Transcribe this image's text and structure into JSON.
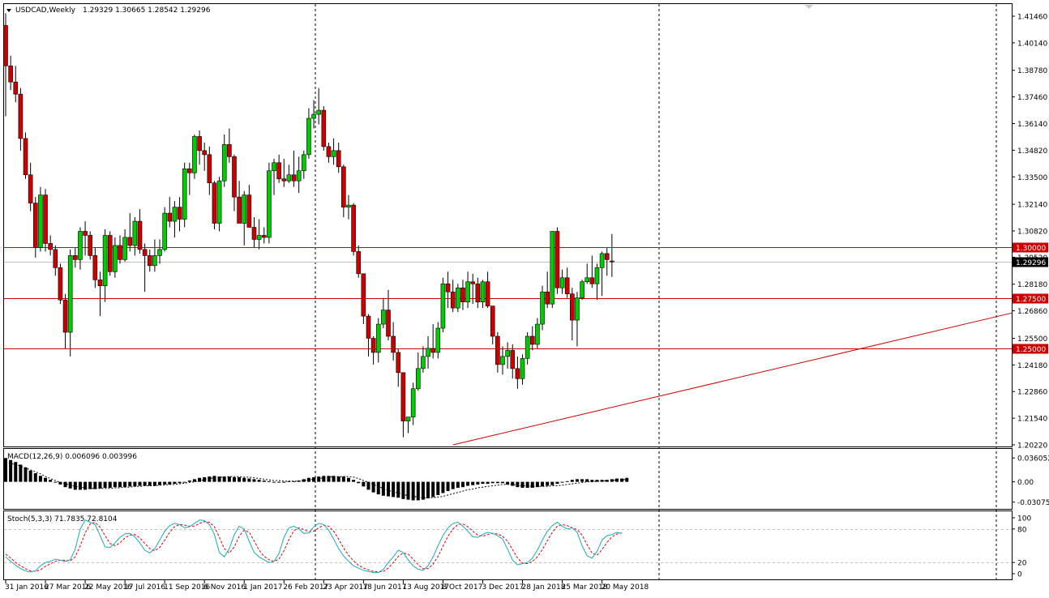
{
  "header": {
    "symbol_tf": "USDCAD,Weekly",
    "ohlc": "1.29329 1.30665 1.28542 1.29296"
  },
  "colors": {
    "bull": "#00cc00",
    "bear": "#cc0000",
    "level_line": "#cc0000",
    "trendline": "#cc0000",
    "stoch_main": "#1ca8c8",
    "stoch_signal": "#e00000",
    "current_price_bg": "#000000"
  },
  "chart_data": [
    {
      "type": "candlestick",
      "name": "USDCAD,Weekly",
      "y_ticks": [
        "1.41460",
        "1.40140",
        "1.38780",
        "1.37460",
        "1.36140",
        "1.34820",
        "1.33500",
        "1.32140",
        "1.30820",
        "1.29520",
        "1.28180",
        "1.26860",
        "1.25500",
        "1.24180",
        "1.22860",
        "1.21540",
        "1.20220"
      ],
      "ylim": [
        1.2022,
        1.4146
      ],
      "x_tick_labels": [
        "31 Jan 2016",
        "27 Mar 2016",
        "22 May 2016",
        "17 Jul 2016",
        "11 Sep 2016",
        "6 Nov 2016",
        "1 Jan 2017",
        "26 Feb 2017",
        "23 Apr 2017",
        "18 Jun 2017",
        "13 Aug 2017",
        "8 Oct 2017",
        "3 Dec 2017",
        "28 Jan 2018",
        "25 Mar 2018",
        "20 May 2018"
      ],
      "horizontal_levels": [
        {
          "value": 1.3,
          "label": "1.30000"
        },
        {
          "value": 1.275,
          "label": "1.27500"
        },
        {
          "value": 1.25,
          "label": "1.25000"
        }
      ],
      "current_price": {
        "value": 1.29296,
        "label": "1.29296"
      },
      "trendline": {
        "from": {
          "bar": 90,
          "value": 1.2022
        },
        "to": {
          "bar": 205,
          "value": 1.269
        }
      },
      "candles": [
        [
          1.41,
          1.416,
          1.365,
          1.39
        ],
        [
          1.39,
          1.395,
          1.378,
          1.382
        ],
        [
          1.382,
          1.39,
          1.372,
          1.376
        ],
        [
          1.376,
          1.379,
          1.348,
          1.354
        ],
        [
          1.354,
          1.357,
          1.334,
          1.336
        ],
        [
          1.336,
          1.342,
          1.318,
          1.322
        ],
        [
          1.322,
          1.325,
          1.295,
          1.3
        ],
        [
          1.3,
          1.33,
          1.298,
          1.326
        ],
        [
          1.326,
          1.329,
          1.298,
          1.302
        ],
        [
          1.302,
          1.306,
          1.296,
          1.299
        ],
        [
          1.299,
          1.301,
          1.286,
          1.29
        ],
        [
          1.29,
          1.292,
          1.272,
          1.274
        ],
        [
          1.274,
          1.277,
          1.25,
          1.258
        ],
        [
          1.258,
          1.299,
          1.246,
          1.296
        ],
        [
          1.296,
          1.3,
          1.29,
          1.294
        ],
        [
          1.294,
          1.31,
          1.289,
          1.308
        ],
        [
          1.308,
          1.313,
          1.296,
          1.306
        ],
        [
          1.306,
          1.308,
          1.294,
          1.296
        ],
        [
          1.296,
          1.3,
          1.28,
          1.284
        ],
        [
          1.284,
          1.288,
          1.266,
          1.281
        ],
        [
          1.281,
          1.309,
          1.273,
          1.306
        ],
        [
          1.306,
          1.308,
          1.286,
          1.288
        ],
        [
          1.288,
          1.305,
          1.285,
          1.301
        ],
        [
          1.301,
          1.306,
          1.292,
          1.294
        ],
        [
          1.294,
          1.309,
          1.293,
          1.305
        ],
        [
          1.305,
          1.317,
          1.298,
          1.301
        ],
        [
          1.301,
          1.315,
          1.296,
          1.313
        ],
        [
          1.313,
          1.319,
          1.297,
          1.299
        ],
        [
          1.299,
          1.302,
          1.278,
          1.296
        ],
        [
          1.296,
          1.299,
          1.288,
          1.291
        ],
        [
          1.291,
          1.304,
          1.288,
          1.296
        ],
        [
          1.296,
          1.304,
          1.292,
          1.299
        ],
        [
          1.299,
          1.32,
          1.298,
          1.317
        ],
        [
          1.317,
          1.325,
          1.31,
          1.313
        ],
        [
          1.313,
          1.323,
          1.305,
          1.32
        ],
        [
          1.32,
          1.325,
          1.308,
          1.314
        ],
        [
          1.314,
          1.342,
          1.31,
          1.339
        ],
        [
          1.339,
          1.342,
          1.326,
          1.337
        ],
        [
          1.337,
          1.356,
          1.334,
          1.355
        ],
        [
          1.355,
          1.358,
          1.341,
          1.348
        ],
        [
          1.348,
          1.352,
          1.338,
          1.346
        ],
        [
          1.346,
          1.35,
          1.326,
          1.332
        ],
        [
          1.332,
          1.333,
          1.309,
          1.312
        ],
        [
          1.312,
          1.335,
          1.308,
          1.333
        ],
        [
          1.333,
          1.356,
          1.33,
          1.351
        ],
        [
          1.351,
          1.359,
          1.342,
          1.345
        ],
        [
          1.345,
          1.346,
          1.318,
          1.325
        ],
        [
          1.325,
          1.333,
          1.313,
          1.312
        ],
        [
          1.312,
          1.328,
          1.301,
          1.326
        ],
        [
          1.326,
          1.331,
          1.31,
          1.31
        ],
        [
          1.31,
          1.315,
          1.3,
          1.304
        ],
        [
          1.304,
          1.314,
          1.299,
          1.306
        ],
        [
          1.306,
          1.31,
          1.302,
          1.305
        ],
        [
          1.305,
          1.342,
          1.302,
          1.338
        ],
        [
          1.338,
          1.344,
          1.326,
          1.342
        ],
        [
          1.342,
          1.346,
          1.332,
          1.334
        ],
        [
          1.334,
          1.344,
          1.33,
          1.333
        ],
        [
          1.333,
          1.341,
          1.332,
          1.336
        ],
        [
          1.336,
          1.348,
          1.33,
          1.333
        ],
        [
          1.333,
          1.345,
          1.327,
          1.338
        ],
        [
          1.338,
          1.348,
          1.334,
          1.346
        ],
        [
          1.346,
          1.369,
          1.344,
          1.364
        ],
        [
          1.364,
          1.373,
          1.359,
          1.366
        ],
        [
          1.366,
          1.379,
          1.361,
          1.368
        ],
        [
          1.368,
          1.37,
          1.348,
          1.35
        ],
        [
          1.35,
          1.352,
          1.342,
          1.345
        ],
        [
          1.345,
          1.354,
          1.341,
          1.348
        ],
        [
          1.348,
          1.352,
          1.337,
          1.34
        ],
        [
          1.34,
          1.341,
          1.315,
          1.32
        ],
        [
          1.32,
          1.326,
          1.314,
          1.321
        ],
        [
          1.321,
          1.322,
          1.296,
          1.298
        ],
        [
          1.298,
          1.301,
          1.285,
          1.287
        ],
        [
          1.287,
          1.287,
          1.262,
          1.266
        ],
        [
          1.266,
          1.267,
          1.246,
          1.255
        ],
        [
          1.255,
          1.256,
          1.242,
          1.248
        ],
        [
          1.248,
          1.265,
          1.243,
          1.262
        ],
        [
          1.262,
          1.275,
          1.26,
          1.269
        ],
        [
          1.269,
          1.279,
          1.254,
          1.256
        ],
        [
          1.256,
          1.263,
          1.244,
          1.248
        ],
        [
          1.248,
          1.25,
          1.231,
          1.238
        ],
        [
          1.238,
          1.238,
          1.206,
          1.214
        ],
        [
          1.214,
          1.216,
          1.208,
          1.216
        ],
        [
          1.216,
          1.233,
          1.212,
          1.23
        ],
        [
          1.23,
          1.248,
          1.229,
          1.24
        ],
        [
          1.24,
          1.251,
          1.238,
          1.246
        ],
        [
          1.246,
          1.256,
          1.24,
          1.25
        ],
        [
          1.25,
          1.262,
          1.245,
          1.248
        ],
        [
          1.248,
          1.263,
          1.245,
          1.26
        ],
        [
          1.26,
          1.285,
          1.258,
          1.282
        ],
        [
          1.282,
          1.288,
          1.27,
          1.278
        ],
        [
          1.278,
          1.284,
          1.268,
          1.27
        ],
        [
          1.27,
          1.282,
          1.268,
          1.28
        ],
        [
          1.28,
          1.284,
          1.269,
          1.273
        ],
        [
          1.273,
          1.288,
          1.27,
          1.283
        ],
        [
          1.283,
          1.287,
          1.272,
          1.282
        ],
        [
          1.282,
          1.285,
          1.27,
          1.273
        ],
        [
          1.273,
          1.284,
          1.27,
          1.283
        ],
        [
          1.283,
          1.288,
          1.27,
          1.271
        ],
        [
          1.271,
          1.271,
          1.252,
          1.256
        ],
        [
          1.256,
          1.258,
          1.238,
          1.242
        ],
        [
          1.242,
          1.251,
          1.237,
          1.246
        ],
        [
          1.246,
          1.253,
          1.24,
          1.249
        ],
        [
          1.249,
          1.252,
          1.235,
          1.24
        ],
        [
          1.24,
          1.246,
          1.23,
          1.235
        ],
        [
          1.235,
          1.247,
          1.232,
          1.245
        ],
        [
          1.245,
          1.258,
          1.242,
          1.256
        ],
        [
          1.256,
          1.261,
          1.249,
          1.252
        ],
        [
          1.252,
          1.265,
          1.25,
          1.262
        ],
        [
          1.262,
          1.281,
          1.259,
          1.278
        ],
        [
          1.278,
          1.288,
          1.27,
          1.272
        ],
        [
          1.272,
          1.308,
          1.27,
          1.308
        ],
        [
          1.308,
          1.31,
          1.277,
          1.28
        ],
        [
          1.28,
          1.289,
          1.277,
          1.285
        ],
        [
          1.285,
          1.29,
          1.275,
          1.277
        ],
        [
          1.277,
          1.28,
          1.254,
          1.264
        ],
        [
          1.264,
          1.278,
          1.251,
          1.275
        ],
        [
          1.275,
          1.284,
          1.274,
          1.283
        ],
        [
          1.283,
          1.292,
          1.282,
          1.285
        ],
        [
          1.285,
          1.296,
          1.28,
          1.282
        ],
        [
          1.282,
          1.292,
          1.274,
          1.29
        ],
        [
          1.29,
          1.298,
          1.276,
          1.297
        ],
        [
          1.297,
          1.3,
          1.286,
          1.294
        ],
        [
          1.2933,
          1.3067,
          1.2854,
          1.293
        ]
      ]
    },
    {
      "type": "bar",
      "name": "MACD(12,26,9) 0.006096 0.003996",
      "y_ticks": [
        "0.036052",
        "0.00",
        "-0.03075"
      ],
      "ylim": [
        -0.036,
        0.04
      ],
      "histogram": [
        0.036,
        0.033,
        0.03,
        0.026,
        0.022,
        0.017,
        0.013,
        0.009,
        0.006,
        0.003,
        0.0,
        -0.004,
        -0.008,
        -0.01,
        -0.012,
        -0.012,
        -0.012,
        -0.011,
        -0.011,
        -0.01,
        -0.009,
        -0.009,
        -0.008,
        -0.008,
        -0.008,
        -0.007,
        -0.007,
        -0.006,
        -0.006,
        -0.006,
        -0.006,
        -0.005,
        -0.004,
        -0.004,
        -0.003,
        -0.002,
        0.0,
        0.002,
        0.004,
        0.006,
        0.007,
        0.008,
        0.009,
        0.008,
        0.008,
        0.008,
        0.007,
        0.007,
        0.006,
        0.005,
        0.004,
        0.003,
        0.002,
        0.001,
        0.0,
        0.0,
        0.0,
        0.001,
        0.001,
        0.002,
        0.004,
        0.006,
        0.007,
        0.008,
        0.009,
        0.009,
        0.009,
        0.008,
        0.008,
        0.006,
        0.003,
        -0.002,
        -0.007,
        -0.012,
        -0.016,
        -0.019,
        -0.021,
        -0.022,
        -0.023,
        -0.024,
        -0.026,
        -0.027,
        -0.028,
        -0.028,
        -0.027,
        -0.025,
        -0.023,
        -0.02,
        -0.017,
        -0.014,
        -0.011,
        -0.009,
        -0.008,
        -0.006,
        -0.005,
        -0.004,
        -0.003,
        -0.003,
        -0.002,
        -0.002,
        -0.002,
        -0.004,
        -0.006,
        -0.008,
        -0.009,
        -0.009,
        -0.009,
        -0.008,
        -0.007,
        -0.006,
        -0.005,
        -0.003,
        -0.001,
        0.001,
        0.003,
        0.004,
        0.004,
        0.004,
        0.003,
        0.003,
        0.003,
        0.003,
        0.004,
        0.005,
        0.005,
        0.006
      ],
      "signal": [
        0.03,
        0.028,
        0.026,
        0.024,
        0.021,
        0.018,
        0.015,
        0.012,
        0.008,
        0.005,
        0.002,
        -0.001,
        -0.003,
        -0.005,
        -0.007,
        -0.008,
        -0.009,
        -0.01,
        -0.01,
        -0.01,
        -0.01,
        -0.01,
        -0.009,
        -0.009,
        -0.008,
        -0.008,
        -0.007,
        -0.007,
        -0.006,
        -0.006,
        -0.006,
        -0.005,
        -0.005,
        -0.004,
        -0.004,
        -0.003,
        -0.002,
        -0.001,
        0.0,
        0.002,
        0.003,
        0.005,
        0.006,
        0.007,
        0.007,
        0.008,
        0.008,
        0.008,
        0.007,
        0.007,
        0.006,
        0.005,
        0.004,
        0.003,
        0.002,
        0.002,
        0.001,
        0.001,
        0.001,
        0.001,
        0.002,
        0.003,
        0.004,
        0.005,
        0.006,
        0.007,
        0.008,
        0.008,
        0.008,
        0.008,
        0.007,
        0.005,
        0.002,
        -0.001,
        -0.004,
        -0.007,
        -0.01,
        -0.013,
        -0.015,
        -0.017,
        -0.019,
        -0.021,
        -0.022,
        -0.023,
        -0.024,
        -0.024,
        -0.024,
        -0.023,
        -0.022,
        -0.02,
        -0.018,
        -0.016,
        -0.014,
        -0.012,
        -0.011,
        -0.009,
        -0.008,
        -0.007,
        -0.006,
        -0.005,
        -0.004,
        -0.004,
        -0.004,
        -0.005,
        -0.006,
        -0.006,
        -0.007,
        -0.007,
        -0.007,
        -0.007,
        -0.006,
        -0.006,
        -0.005,
        -0.004,
        -0.003,
        -0.002,
        -0.001,
        0.0,
        0.0,
        0.001,
        0.001,
        0.002,
        0.002,
        0.003,
        0.003,
        0.004
      ]
    },
    {
      "type": "line",
      "name": "Stoch(5,3,3) 71.7835 72.8104",
      "y_ticks": [
        "100",
        "80",
        "20",
        "0"
      ],
      "ylim": [
        0,
        100
      ],
      "levels": [
        80,
        20
      ],
      "main": [
        30,
        22,
        15,
        9,
        5,
        3,
        5,
        14,
        20,
        22,
        26,
        24,
        22,
        25,
        44,
        80,
        96,
        92,
        88,
        68,
        48,
        47,
        55,
        65,
        71,
        72,
        66,
        55,
        42,
        37,
        45,
        60,
        76,
        86,
        90,
        88,
        82,
        84,
        90,
        96,
        95,
        88,
        70,
        38,
        30,
        45,
        70,
        85,
        80,
        58,
        38,
        30,
        25,
        20,
        22,
        36,
        65,
        82,
        85,
        80,
        72,
        73,
        84,
        90,
        88,
        78,
        62,
        45,
        32,
        22,
        14,
        10,
        6,
        4,
        2,
        2,
        8,
        20,
        30,
        42,
        38,
        25,
        14,
        8,
        6,
        14,
        30,
        50,
        68,
        82,
        90,
        92,
        85,
        76,
        66,
        65,
        70,
        74,
        72,
        68,
        62,
        44,
        24,
        16,
        18,
        20,
        28,
        42,
        60,
        76,
        86,
        92,
        85,
        80,
        82,
        74,
        50,
        32,
        28,
        40,
        60,
        68,
        70,
        74,
        72
      ],
      "signal": [
        35,
        28,
        20,
        14,
        9,
        5,
        4,
        7,
        13,
        18,
        22,
        24,
        24,
        23,
        30,
        50,
        73,
        89,
        92,
        83,
        68,
        54,
        50,
        55,
        64,
        69,
        70,
        64,
        54,
        45,
        41,
        47,
        60,
        74,
        84,
        88,
        87,
        85,
        85,
        90,
        93,
        92,
        84,
        65,
        45,
        37,
        48,
        67,
        78,
        74,
        59,
        42,
        31,
        25,
        22,
        26,
        41,
        61,
        77,
        82,
        79,
        75,
        76,
        82,
        87,
        85,
        76,
        62,
        46,
        33,
        23,
        15,
        10,
        7,
        4,
        3,
        4,
        10,
        20,
        31,
        37,
        35,
        26,
        16,
        9,
        9,
        17,
        31,
        49,
        67,
        80,
        88,
        89,
        84,
        76,
        69,
        67,
        70,
        72,
        71,
        67,
        58,
        43,
        28,
        19,
        18,
        22,
        30,
        43,
        59,
        74,
        85,
        88,
        86,
        82,
        79,
        69,
        52,
        37,
        33,
        43,
        56,
        66,
        71,
        73
      ]
    }
  ]
}
